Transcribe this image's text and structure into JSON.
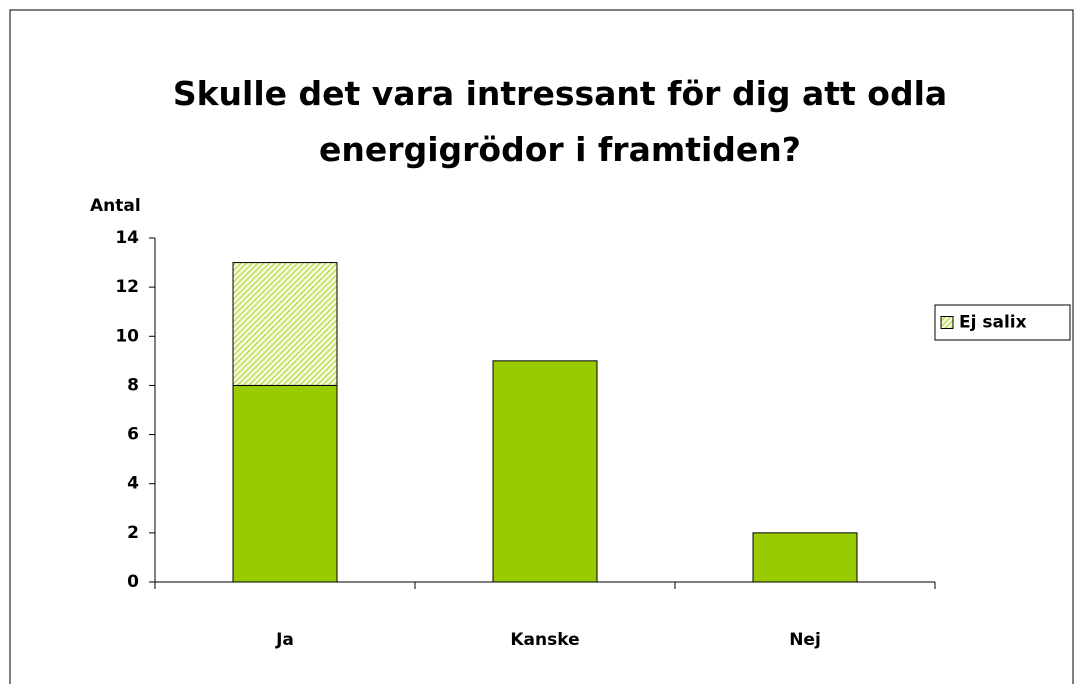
{
  "chart_data": {
    "type": "bar",
    "stacked": true,
    "title": "Skulle det vara intressant för dig att odla energigrödor i framtiden?",
    "y_label": "Antal",
    "categories": [
      "Ja",
      "Kanske",
      "Nej"
    ],
    "series": [
      {
        "color": "#99cc00",
        "values": [
          8,
          9,
          2
        ]
      },
      {
        "name": "Ej salix",
        "color": "#99cc00",
        "hatch": true,
        "values": [
          5,
          null,
          null
        ]
      }
    ],
    "ylim": [
      0,
      14
    ],
    "yticks": [
      0,
      2,
      4,
      6,
      8,
      10,
      12,
      14
    ],
    "legend": "right"
  }
}
